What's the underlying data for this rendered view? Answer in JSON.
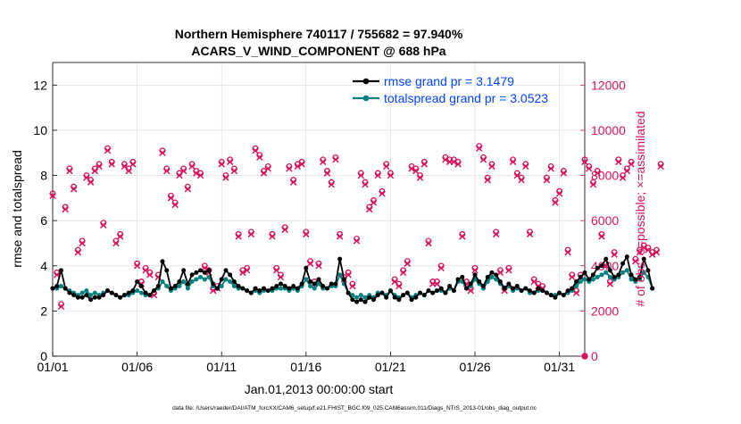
{
  "chart_data": {
    "type": "line",
    "title_line1": "Northern Hemisphere 740117 / 755682 = 97.940%",
    "title_line2": "ACARS_V_WIND_COMPONENT @ 688 hPa",
    "xlabel": "Jan.01,2013 00:00:00 start",
    "ylabel_left": "rmse and totalspread",
    "ylabel_right": "# of obs: o=possible; ×=assimilated",
    "footer": "data file: /Users/raeder/DAI/ATM_forcXX/CAM6_setup/f.e21.FHIST_BGC.f09_025.CAM6assim.011/Diags_NTrS_2013-01/obs_diag_output.nc",
    "x_range_days": [
      0,
      31.5
    ],
    "ylim_left": [
      0,
      13
    ],
    "ylim_right": [
      0,
      13000
    ],
    "x_ticks": [
      {
        "day": 0,
        "label": "01/01"
      },
      {
        "day": 5,
        "label": "01/06"
      },
      {
        "day": 10,
        "label": "01/11"
      },
      {
        "day": 15,
        "label": "01/16"
      },
      {
        "day": 20,
        "label": "01/21"
      },
      {
        "day": 25,
        "label": "01/26"
      },
      {
        "day": 30,
        "label": "01/31"
      }
    ],
    "y_ticks_left": [
      0,
      2,
      4,
      6,
      8,
      10,
      12
    ],
    "y_ticks_right": [
      0,
      2000,
      4000,
      6000,
      8000,
      10000,
      12000
    ],
    "legend": [
      {
        "label": "rmse grand pr = 3.1479",
        "color": "#000000"
      },
      {
        "label": "totalspread grand pr = 3.0523",
        "color": "#008080"
      }
    ],
    "step_days": 0.25,
    "rmse": [
      3.0,
      3.1,
      3.8,
      3.0,
      2.8,
      2.7,
      2.6,
      2.6,
      2.7,
      2.5,
      2.6,
      2.6,
      2.7,
      2.9,
      2.8,
      2.7,
      2.6,
      2.7,
      2.8,
      2.9,
      3.3,
      3.1,
      2.8,
      2.7,
      2.9,
      3.1,
      4.2,
      3.8,
      3.0,
      3.1,
      3.3,
      3.8,
      3.2,
      3.6,
      3.7,
      3.8,
      3.7,
      3.8,
      3.2,
      3.0,
      3.4,
      3.8,
      3.6,
      3.3,
      3.1,
      3.0,
      2.9,
      2.8,
      3.0,
      2.9,
      3.0,
      2.9,
      3.0,
      3.1,
      3.2,
      3.1,
      3.0,
      3.1,
      3.0,
      3.2,
      3.9,
      3.3,
      3.2,
      3.4,
      3.1,
      3.0,
      3.2,
      3.2,
      4.3,
      3.4,
      2.8,
      2.5,
      2.4,
      2.5,
      2.4,
      2.6,
      2.5,
      2.7,
      2.8,
      2.6,
      2.9,
      2.6,
      2.5,
      2.7,
      2.8,
      2.5,
      2.6,
      2.8,
      2.7,
      2.9,
      2.8,
      2.9,
      3.0,
      2.8,
      3.1,
      2.9,
      3.4,
      3.5,
      3.0,
      3.2,
      3.6,
      3.3,
      3.1,
      3.5,
      3.7,
      3.6,
      3.3,
      3.0,
      3.2,
      3.0,
      3.1,
      2.9,
      3.0,
      2.9,
      2.8,
      3.0,
      2.9,
      2.8,
      2.7,
      2.6,
      2.8,
      2.7,
      2.9,
      3.0,
      3.3,
      3.5,
      3.7,
      3.4,
      3.6,
      3.9,
      4.0,
      4.3,
      3.8,
      3.5,
      3.6,
      4.1,
      4.4,
      3.6,
      3.4,
      3.5,
      4.3,
      3.8,
      3.0
    ],
    "totalspread": [
      3.0,
      3.0,
      3.1,
      3.0,
      2.9,
      2.8,
      2.7,
      2.8,
      2.9,
      2.7,
      2.8,
      2.7,
      2.8,
      2.9,
      2.8,
      2.7,
      2.6,
      2.7,
      2.7,
      2.8,
      2.9,
      2.8,
      2.7,
      2.7,
      2.9,
      3.0,
      3.3,
      3.1,
      2.9,
      3.0,
      3.1,
      3.3,
      3.0,
      3.3,
      3.4,
      3.5,
      3.4,
      3.5,
      3.1,
      3.0,
      3.1,
      3.4,
      3.3,
      3.1,
      3.0,
      3.0,
      2.9,
      2.8,
      2.9,
      2.8,
      2.9,
      2.9,
      2.9,
      3.0,
      3.0,
      3.0,
      2.9,
      3.0,
      2.9,
      3.1,
      3.4,
      3.1,
      3.0,
      3.2,
      3.0,
      3.0,
      3.1,
      3.1,
      3.6,
      3.2,
      2.8,
      2.7,
      2.6,
      2.7,
      2.6,
      2.7,
      2.6,
      2.8,
      2.8,
      2.7,
      2.9,
      2.7,
      2.6,
      2.7,
      2.8,
      2.6,
      2.7,
      2.8,
      2.7,
      2.9,
      2.8,
      2.9,
      2.9,
      2.8,
      3.0,
      2.9,
      3.3,
      3.3,
      3.0,
      3.1,
      3.4,
      3.2,
      3.0,
      3.3,
      3.5,
      3.4,
      3.2,
      3.0,
      3.1,
      2.9,
      3.0,
      2.9,
      3.0,
      2.8,
      2.8,
      2.9,
      2.9,
      2.8,
      2.7,
      2.7,
      2.8,
      2.7,
      2.8,
      2.9,
      3.1,
      3.3,
      3.4,
      3.3,
      3.4,
      3.5,
      3.6,
      3.7,
      3.5,
      3.4,
      3.5,
      3.7,
      3.8,
      3.4,
      3.3,
      3.4,
      3.7,
      3.5,
      3.0
    ],
    "obs_possible": [
      7200,
      3700,
      2300,
      6600,
      8300,
      7500,
      4700,
      5100,
      8000,
      7800,
      8300,
      8500,
      5900,
      9200,
      8600,
      5100,
      5400,
      8500,
      8300,
      8600,
      4100,
      3300,
      3900,
      3700,
      2800,
      3600,
      9100,
      8300,
      7100,
      6800,
      8100,
      8300,
      7500,
      8500,
      8200,
      8100,
      4000,
      3800,
      3000,
      3100,
      8600,
      8000,
      8700,
      8300,
      5400,
      3800,
      3900,
      5500,
      9200,
      8900,
      8200,
      8400,
      5400,
      3900,
      3600,
      5700,
      8400,
      7800,
      8500,
      8600,
      5500,
      4200,
      3300,
      4100,
      8700,
      8200,
      7700,
      8800,
      5400,
      3500,
      3700,
      3200,
      5200,
      8100,
      7700,
      6600,
      6900,
      8100,
      7300,
      8500,
      8100,
      3400,
      3200,
      3800,
      4200,
      8400,
      8300,
      8000,
      8600,
      5100,
      3300,
      3300,
      4000,
      8800,
      8700,
      8700,
      8600,
      5400,
      3300,
      3000,
      3900,
      9300,
      8800,
      7900,
      8500,
      5500,
      3800,
      3000,
      3900,
      8700,
      8100,
      7900,
      8500,
      5500,
      3400,
      3200,
      3100,
      7900,
      8400,
      6900,
      7300,
      8200,
      4700,
      3600,
      2900,
      3600,
      8700,
      8400,
      7700,
      8200,
      5400,
      4100,
      3300,
      4600,
      8700,
      8000,
      8300,
      8600,
      4300,
      4700,
      4900,
      4800,
      4600,
      4700,
      8500
    ],
    "obs_assimilated": [
      7100,
      3600,
      2200,
      6500,
      8200,
      7400,
      4600,
      5000,
      7900,
      7700,
      8200,
      8400,
      5800,
      9100,
      8500,
      5000,
      5300,
      8400,
      8200,
      8500,
      4000,
      3200,
      3800,
      3600,
      2700,
      3500,
      9000,
      8200,
      7000,
      6700,
      8000,
      8200,
      7400,
      8400,
      8100,
      8000,
      3900,
      3700,
      2900,
      3000,
      8500,
      7900,
      8600,
      8200,
      5300,
      3700,
      3800,
      5400,
      9100,
      8800,
      8100,
      8300,
      5300,
      3800,
      3500,
      5600,
      8300,
      7700,
      8400,
      8500,
      5400,
      4100,
      3200,
      4000,
      8600,
      8100,
      7600,
      8700,
      5300,
      3400,
      3600,
      3100,
      5100,
      8000,
      7600,
      6500,
      6800,
      8000,
      7200,
      8400,
      8000,
      3300,
      3100,
      3700,
      4100,
      8300,
      8200,
      7900,
      8500,
      5000,
      3200,
      3200,
      3900,
      8700,
      8600,
      8600,
      8500,
      5300,
      3200,
      2900,
      3800,
      9200,
      8700,
      7800,
      8400,
      5400,
      3700,
      2900,
      3800,
      8600,
      8000,
      7800,
      8400,
      5400,
      3300,
      3100,
      3000,
      7800,
      8300,
      6800,
      7200,
      8100,
      4600,
      3500,
      2800,
      3500,
      8600,
      8300,
      7600,
      8100,
      5300,
      4000,
      3200,
      4500,
      8600,
      7900,
      8200,
      8500,
      4200,
      4600,
      4800,
      4700,
      4500,
      4600,
      8400
    ]
  },
  "colors": {
    "rmse": "#000000",
    "spread": "#008080",
    "obs": "#d6135e",
    "right_axis": "#d6135e",
    "legend_text": "#0044ff",
    "grid": "#d9d9d9"
  }
}
